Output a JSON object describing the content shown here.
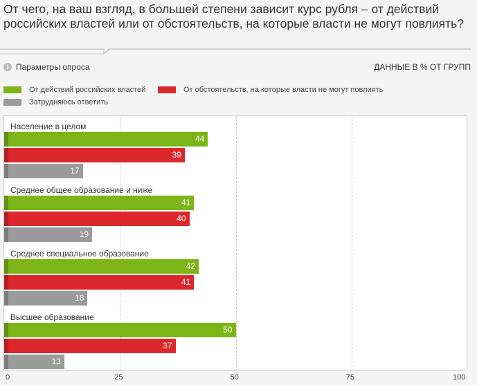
{
  "title": "От чего, на ваш взгляд, в большей степени зависит курс рубля – от действий российских властей или от обстоятельств, на которые власти не могут повлиять?",
  "params_label": "Параметры опроса",
  "units_label": "ДАННЫЕ В % ОТ ГРУПП",
  "chart_data": {
    "type": "bar",
    "orientation": "horizontal",
    "title": "От чего, на ваш взгляд, в большей степени зависит курс рубля – от действий российских властей или от обстоятельств, на которые власти не могут повлиять?",
    "categories": [
      "Население в целом",
      "Среднее общее образование и ниже",
      "Среднее специальное образование",
      "Высшее образование"
    ],
    "series": [
      {
        "name": "От действий российских властей",
        "color": "#7cb518",
        "values": [
          44,
          41,
          42,
          50
        ]
      },
      {
        "name": "От обстоятельств, на которые власти не могут повлиять",
        "color": "#dc282c",
        "values": [
          39,
          40,
          41,
          37
        ]
      },
      {
        "name": "Затрудняюсь ответить",
        "color": "#9b9b9b",
        "values": [
          17,
          19,
          18,
          13
        ]
      }
    ],
    "xlim": [
      0,
      100
    ],
    "xticks": [
      "0",
      "25",
      "50",
      "75",
      "100"
    ],
    "grid": true,
    "legend": "top-left"
  }
}
